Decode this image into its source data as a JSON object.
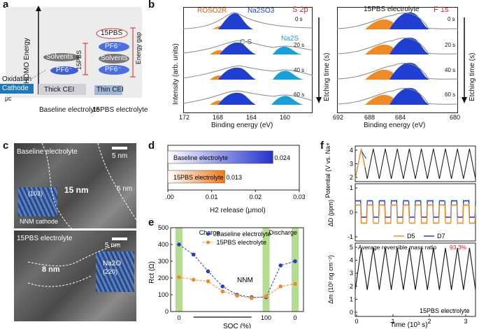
{
  "panel_labels": {
    "a": "a",
    "b": "b",
    "c": "c",
    "d": "d",
    "e": "e",
    "f": "f"
  },
  "panel_a": {
    "y_axis": "HOMO Energy",
    "oxidation": "Oxidation",
    "cathode": "Cathode",
    "mu_c": "μc",
    "thick_cei": "Thick CEI",
    "thin_cei": "Thin CEI",
    "left_solvents": "Solvents",
    "left_pf6": "PF6⁻",
    "right_15pbs": "15PBS",
    "right_pf6_top": "PF6⁻",
    "right_solvents": "Solvents",
    "right_pf6_bottom": "PF6⁻",
    "side_15pbs": "15PBS",
    "energy_gap": "Energy gap",
    "baseline_caption": "Baseline electrolyte",
    "pbs_caption": "15PBS electrolyte"
  },
  "panel_b": {
    "left_title": "S 2p",
    "right_title": "F 1s",
    "right_header": "15PBS electrolyte",
    "rosoor": "ROSO2R",
    "na2so3": "Na2SO3",
    "cs": "C-S",
    "na2s": "Na2S",
    "ylabel": "Intensity (arb. units)",
    "xlabel_left": "Binding energy (eV)",
    "xlabel_right": "Binding energy (eV)",
    "etching_left": "Etching time (s)",
    "etching_right": "Etching time (s)",
    "times": [
      "0 s",
      "20 s",
      "40 s",
      "60 s"
    ],
    "left_ticks": [
      "172",
      "168",
      "164",
      "160"
    ],
    "right_ticks": [
      "692",
      "688",
      "684",
      "680"
    ]
  },
  "panel_c": {
    "top_label": "Baseline electrolyte",
    "top_scale": "5 nm",
    "top_thickness": "15 nm",
    "top_5nm": "5 nm",
    "top_inset": "(103)",
    "top_inset_caption": "NNM cathode",
    "bottom_label": "15PBS electrolyte",
    "bottom_scale": "5 nm",
    "bottom_thickness": "8 nm",
    "bottom_inset_name": "Na2O",
    "bottom_inset": "(220)"
  },
  "chart_data": [
    {
      "type": "bar",
      "panel": "d",
      "orientation": "horizontal",
      "categories": [
        "Baseline electrolyte",
        "15PBS electrolyte"
      ],
      "values": [
        0.024,
        0.013
      ],
      "value_labels": [
        "0.024",
        "0.013"
      ],
      "xlabel": "H2 release (μmol)",
      "xlim": [
        0,
        0.03
      ],
      "xticks": [
        "0.00",
        "0.01",
        "0.02",
        "0.03"
      ]
    },
    {
      "type": "line",
      "panel": "e",
      "ylabel": "Rct (Ω)",
      "xlabel": "SOC (%)",
      "ylim": [
        0,
        500
      ],
      "yticks": [
        "0",
        "100",
        "200",
        "300",
        "400",
        "500"
      ],
      "xticks": [
        "0",
        "100",
        "0"
      ],
      "annotations": [
        "Charge",
        "Discharge",
        "NNM"
      ],
      "series": [
        {
          "name": "Baseline electrolyte",
          "color": "#1f3fd1",
          "values": [
            400,
            340,
            240,
            150,
            100,
            85,
            85,
            275,
            300
          ]
        },
        {
          "name": "15PBS electrolyte",
          "color": "#f08a24",
          "values": [
            205,
            190,
            180,
            120,
            95,
            80,
            90,
            150,
            165
          ]
        }
      ]
    },
    {
      "type": "line",
      "panel": "f",
      "ylabel_top": "Potential (V vs. Na+/Na)",
      "yticks_top": [
        "2",
        "3",
        "4"
      ],
      "ylabel_mid": "ΔD (ppm)",
      "yticks_mid": [
        "-1",
        "0",
        "1"
      ],
      "legend_mid": [
        "D5",
        "D7"
      ],
      "ylabel_bottom": "Δm (10² ng cm⁻²)",
      "yticks_bottom": [
        "0",
        "1",
        "2",
        "3",
        "4",
        "5"
      ],
      "xlabel": "Time (10³ s)",
      "xticks": [
        "0",
        "1",
        "2",
        "3"
      ],
      "annotation": "Average reversible mass ratio",
      "annotation_value": "93.3%",
      "caption": "15PBS electrolyte",
      "cycles": 10
    }
  ]
}
